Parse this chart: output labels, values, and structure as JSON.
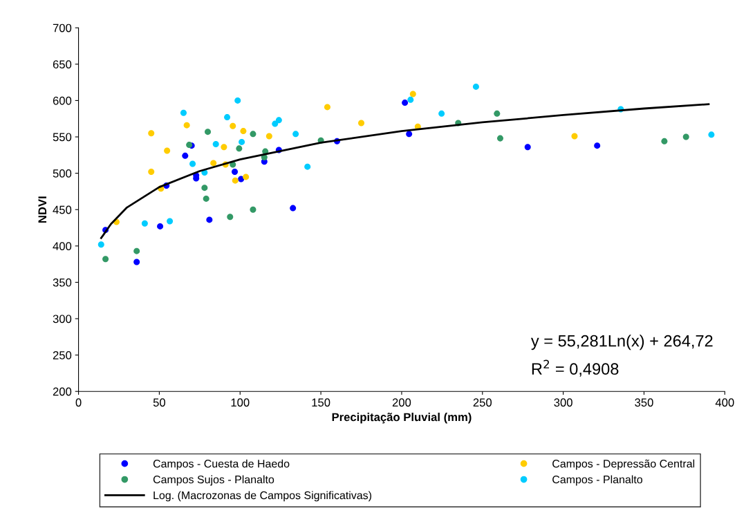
{
  "chart_data": {
    "type": "scatter",
    "xlabel": "Precipitação Pluvial (mm)",
    "ylabel": "NDVI",
    "xlim": [
      0,
      400
    ],
    "xticks": [
      0,
      50,
      100,
      150,
      200,
      250,
      300,
      350,
      400
    ],
    "ylim": [
      200,
      700
    ],
    "yticks": [
      200,
      250,
      300,
      350,
      400,
      450,
      500,
      550,
      600,
      650,
      700
    ],
    "grid": false,
    "legend": "bottom",
    "marker": "circle",
    "annotations": [
      "y = 55,281Ln(x) + 264,72",
      "R$^{2}$ = 0,4908"
    ],
    "series": [
      {
        "name": "Campos - Cuesta de Haedo",
        "color": "#0000ff",
        "x": [
          16.7,
          36,
          50.5,
          54.4,
          66,
          70,
          72.8,
          72.8,
          81,
          96.7,
          100.6,
          115,
          124,
          132.7,
          160,
          202,
          204.6,
          278,
          321
        ],
        "values": [
          422,
          378,
          427,
          483,
          524,
          538,
          497,
          493,
          436,
          502,
          492,
          516,
          532,
          452,
          544,
          597,
          554,
          536,
          538
        ]
      },
      {
        "name": "Campos - Depressão Central",
        "color": "#ffcc00",
        "x": [
          23.5,
          45,
          45,
          54.8,
          51,
          67,
          83.5,
          90,
          91,
          95.5,
          97,
          102,
          103.6,
          118,
          154,
          175,
          207,
          210,
          307
        ],
        "values": [
          433,
          555,
          502,
          531,
          479,
          566,
          514,
          536,
          512,
          565,
          490,
          558,
          495,
          551,
          591,
          569,
          609,
          564,
          551
        ]
      },
      {
        "name": "Campos Sujos - Planalto",
        "color": "#339966",
        "x": [
          16.7,
          36,
          68.5,
          80,
          78,
          79,
          93.8,
          95.5,
          99.4,
          108,
          108,
          115.6,
          115,
          150,
          235,
          259,
          261,
          362.6,
          376
        ],
        "values": [
          382,
          393,
          539,
          557,
          480,
          465,
          440,
          512,
          534,
          554,
          450,
          530,
          522,
          545,
          569,
          582,
          548,
          544,
          550
        ]
      },
      {
        "name": "Campos - Planalto",
        "color": "#00ccff",
        "x": [
          14,
          41,
          56.5,
          65,
          70.6,
          78,
          85,
          92,
          98.5,
          101,
          121.6,
          124,
          134.4,
          141.7,
          205.5,
          224.7,
          246,
          335.6,
          391.7
        ],
        "values": [
          402,
          431,
          434,
          583,
          513,
          501,
          540,
          577,
          600,
          543,
          568,
          573,
          554,
          509,
          601,
          582,
          619,
          588,
          553
        ]
      },
      {
        "name": "Log. (Macrozonas de Campos Significativas)",
        "type": "line",
        "color": "#000000",
        "line_style": "solid",
        "marker": "none",
        "x": [
          14,
          15,
          20,
          30,
          50,
          75,
          100,
          150,
          200,
          250,
          300,
          350,
          390
        ],
        "values": [
          411,
          414,
          430,
          453,
          481,
          503,
          519,
          542,
          558,
          570,
          580,
          589,
          595
        ]
      }
    ]
  }
}
